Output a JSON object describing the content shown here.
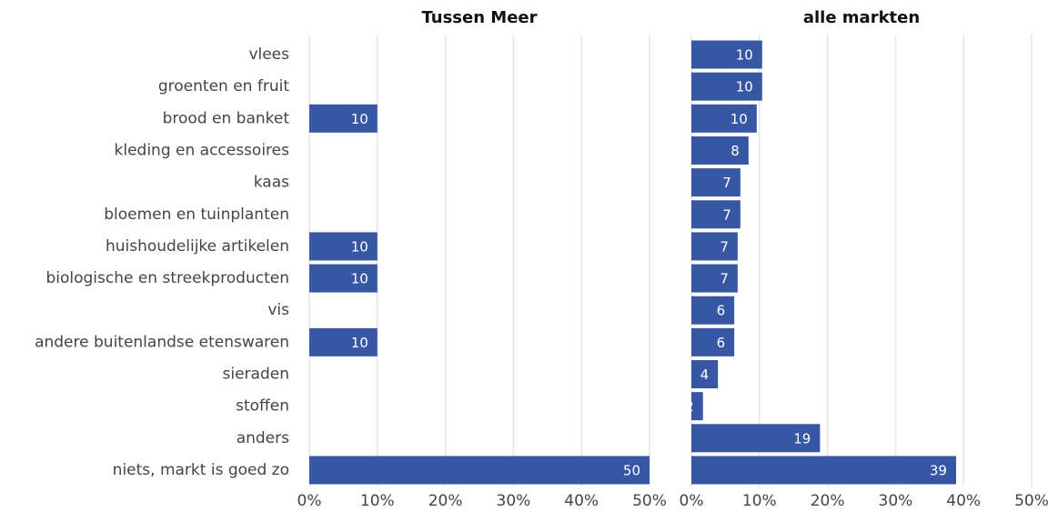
{
  "chart_data": {
    "type": "bar",
    "categories": [
      "vlees",
      "groenten en fruit",
      "brood en banket",
      "kleding en accessoires",
      "kaas",
      "bloemen en tuinplanten",
      "huishoudelijke artikelen",
      "biologische en streekproducten",
      "vis",
      "andere buitenlandse etenswaren",
      "sieraden",
      "stoffen",
      "anders",
      "niets, markt is goed zo"
    ],
    "series": [
      {
        "name": "Tussen Meer",
        "color": "#3757a5",
        "values": [
          null,
          null,
          10,
          null,
          null,
          null,
          10,
          10,
          null,
          10,
          null,
          null,
          null,
          50
        ]
      },
      {
        "name": "alle markten",
        "color": "#3757a5",
        "values": [
          10.4,
          10.4,
          9.6,
          8.4,
          7.2,
          7.2,
          6.8,
          6.8,
          6.3,
          6.3,
          3.9,
          1.7,
          18.9,
          38.9
        ],
        "value_labels": [
          "10",
          "10",
          "10",
          "8",
          "7",
          "7",
          "7",
          "7",
          "6",
          "6",
          "4",
          "2",
          "19",
          "39"
        ]
      }
    ],
    "xlim": [
      0,
      50
    ],
    "xticks": [
      {
        "value": 0,
        "label": "0%"
      },
      {
        "value": 10,
        "label": "10%"
      },
      {
        "value": 20,
        "label": "20%"
      },
      {
        "value": 30,
        "label": "30%"
      },
      {
        "value": 40,
        "label": "40%"
      },
      {
        "value": 50,
        "label": "50%"
      }
    ],
    "grid": true
  }
}
